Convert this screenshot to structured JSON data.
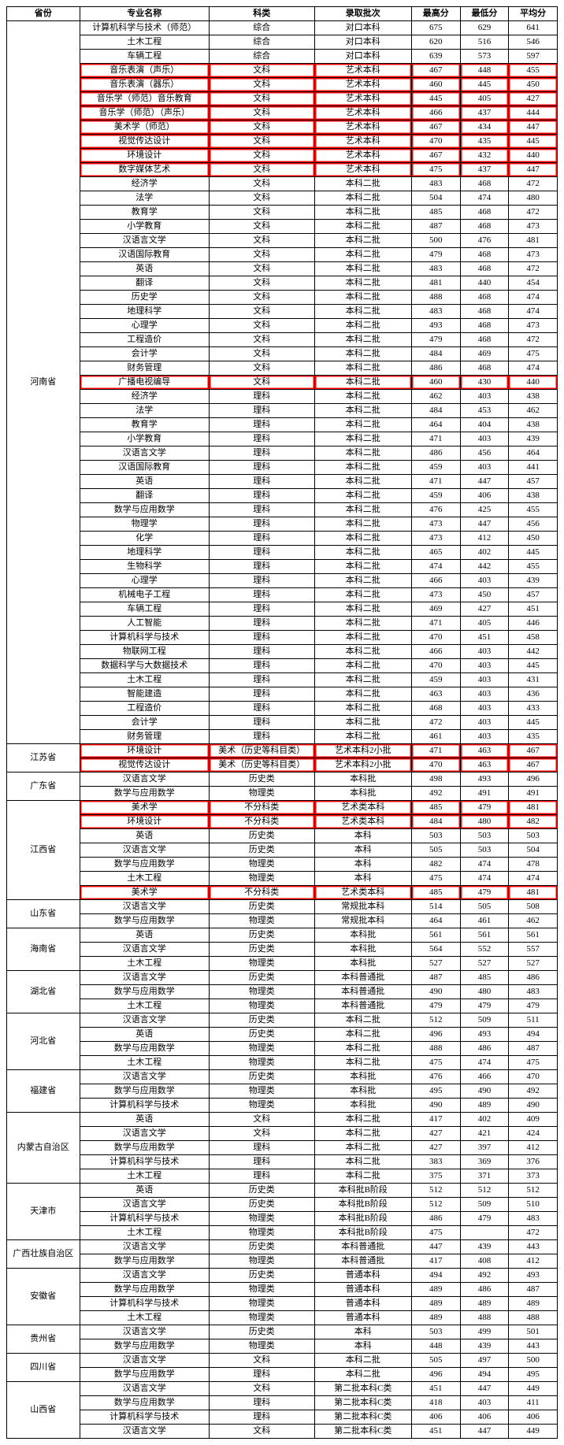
{
  "headers": [
    "省份",
    "专业名称",
    "科类",
    "录取批次",
    "最高分",
    "最低分",
    "平均分"
  ],
  "colors": {
    "highlight": "#ff0000",
    "border": "#000000",
    "text": "#000000",
    "bg": "#ffffff"
  },
  "font": {
    "family": "SimSun",
    "size_pt": 11
  },
  "provinces": [
    {
      "name": "河南省",
      "rows": [
        [
          "计算机科学与技术（师范）",
          "综合",
          "对口本科",
          "675",
          "629",
          "641",
          false
        ],
        [
          "土木工程",
          "综合",
          "对口本科",
          "620",
          "516",
          "546",
          false
        ],
        [
          "车辆工程",
          "综合",
          "对口本科",
          "639",
          "573",
          "597",
          false
        ],
        [
          "音乐表演（声乐）",
          "文科",
          "艺术本科",
          "467",
          "448",
          "455",
          true
        ],
        [
          "音乐表演（器乐）",
          "文科",
          "艺术本科",
          "460",
          "445",
          "450",
          true
        ],
        [
          "音乐学（师范）音乐教育",
          "文科",
          "艺术本科",
          "445",
          "405",
          "427",
          true
        ],
        [
          "音乐学（师范）（声乐）",
          "文科",
          "艺术本科",
          "466",
          "437",
          "444",
          true
        ],
        [
          "美术学（师范）",
          "文科",
          "艺术本科",
          "467",
          "434",
          "447",
          true
        ],
        [
          "视觉传达设计",
          "文科",
          "艺术本科",
          "470",
          "435",
          "445",
          true
        ],
        [
          "环境设计",
          "文科",
          "艺术本科",
          "467",
          "432",
          "440",
          true
        ],
        [
          "数字媒体艺术",
          "文科",
          "艺术本科",
          "475",
          "437",
          "447",
          true
        ],
        [
          "经济学",
          "文科",
          "本科二批",
          "483",
          "468",
          "472",
          false
        ],
        [
          "法学",
          "文科",
          "本科二批",
          "504",
          "474",
          "480",
          false
        ],
        [
          "教育学",
          "文科",
          "本科二批",
          "485",
          "468",
          "472",
          false
        ],
        [
          "小学教育",
          "文科",
          "本科二批",
          "487",
          "468",
          "473",
          false
        ],
        [
          "汉语言文学",
          "文科",
          "本科二批",
          "500",
          "476",
          "481",
          false
        ],
        [
          "汉语国际教育",
          "文科",
          "本科二批",
          "479",
          "468",
          "473",
          false
        ],
        [
          "英语",
          "文科",
          "本科二批",
          "483",
          "468",
          "472",
          false
        ],
        [
          "翻译",
          "文科",
          "本科二批",
          "481",
          "440",
          "454",
          false
        ],
        [
          "历史学",
          "文科",
          "本科二批",
          "488",
          "468",
          "474",
          false
        ],
        [
          "地理科学",
          "文科",
          "本科二批",
          "483",
          "468",
          "474",
          false
        ],
        [
          "心理学",
          "文科",
          "本科二批",
          "493",
          "468",
          "473",
          false
        ],
        [
          "工程造价",
          "文科",
          "本科二批",
          "479",
          "468",
          "472",
          false
        ],
        [
          "会计学",
          "文科",
          "本科二批",
          "484",
          "469",
          "475",
          false
        ],
        [
          "财务管理",
          "文科",
          "本科二批",
          "486",
          "468",
          "474",
          false
        ],
        [
          "广播电视编导",
          "文科",
          "本科二批",
          "460",
          "430",
          "440",
          true
        ],
        [
          "经济学",
          "理科",
          "本科二批",
          "462",
          "403",
          "438",
          false
        ],
        [
          "法学",
          "理科",
          "本科二批",
          "484",
          "453",
          "462",
          false
        ],
        [
          "教育学",
          "理科",
          "本科二批",
          "464",
          "404",
          "438",
          false
        ],
        [
          "小学教育",
          "理科",
          "本科二批",
          "471",
          "403",
          "439",
          false
        ],
        [
          "汉语言文学",
          "理科",
          "本科二批",
          "486",
          "456",
          "464",
          false
        ],
        [
          "汉语国际教育",
          "理科",
          "本科二批",
          "459",
          "403",
          "441",
          false
        ],
        [
          "英语",
          "理科",
          "本科二批",
          "471",
          "447",
          "457",
          false
        ],
        [
          "翻译",
          "理科",
          "本科二批",
          "459",
          "406",
          "438",
          false
        ],
        [
          "数学与应用数学",
          "理科",
          "本科二批",
          "476",
          "425",
          "455",
          false
        ],
        [
          "物理学",
          "理科",
          "本科二批",
          "473",
          "447",
          "456",
          false
        ],
        [
          "化学",
          "理科",
          "本科二批",
          "473",
          "412",
          "450",
          false
        ],
        [
          "地理科学",
          "理科",
          "本科二批",
          "465",
          "402",
          "445",
          false
        ],
        [
          "生物科学",
          "理科",
          "本科二批",
          "474",
          "442",
          "455",
          false
        ],
        [
          "心理学",
          "理科",
          "本科二批",
          "466",
          "403",
          "439",
          false
        ],
        [
          "机械电子工程",
          "理科",
          "本科二批",
          "473",
          "450",
          "457",
          false
        ],
        [
          "车辆工程",
          "理科",
          "本科二批",
          "469",
          "427",
          "451",
          false
        ],
        [
          "人工智能",
          "理科",
          "本科二批",
          "471",
          "405",
          "446",
          false
        ],
        [
          "计算机科学与技术",
          "理科",
          "本科二批",
          "470",
          "451",
          "458",
          false
        ],
        [
          "物联网工程",
          "理科",
          "本科二批",
          "466",
          "403",
          "442",
          false
        ],
        [
          "数据科学与大数据技术",
          "理科",
          "本科二批",
          "470",
          "403",
          "445",
          false
        ],
        [
          "土木工程",
          "理科",
          "本科二批",
          "459",
          "403",
          "431",
          false
        ],
        [
          "智能建造",
          "理科",
          "本科二批",
          "463",
          "403",
          "436",
          false
        ],
        [
          "工程造价",
          "理科",
          "本科二批",
          "468",
          "403",
          "433",
          false
        ],
        [
          "会计学",
          "理科",
          "本科二批",
          "472",
          "403",
          "445",
          false
        ],
        [
          "财务管理",
          "理科",
          "本科二批",
          "461",
          "403",
          "435",
          false
        ]
      ]
    },
    {
      "name": "江苏省",
      "rows": [
        [
          "环境设计",
          "美术（历史等科目类）",
          "艺术本科2小批",
          "471",
          "463",
          "467",
          true
        ],
        [
          "视觉传达设计",
          "美术（历史等科目类）",
          "艺术本科2小批",
          "470",
          "463",
          "467",
          true
        ]
      ]
    },
    {
      "name": "广东省",
      "rows": [
        [
          "汉语言文学",
          "历史类",
          "本科批",
          "498",
          "493",
          "496",
          false
        ],
        [
          "数学与应用数学",
          "物理类",
          "本科批",
          "492",
          "491",
          "491",
          false
        ]
      ]
    },
    {
      "name": "江西省",
      "rows": [
        [
          "美术学",
          "不分科类",
          "艺术类本科",
          "485",
          "479",
          "481",
          true
        ],
        [
          "环境设计",
          "不分科类",
          "艺术类本科",
          "484",
          "480",
          "482",
          true
        ],
        [
          "英语",
          "历史类",
          "本科",
          "503",
          "503",
          "503",
          false
        ],
        [
          "汉语言文学",
          "历史类",
          "本科",
          "505",
          "503",
          "504",
          false
        ],
        [
          "数学与应用数学",
          "物理类",
          "本科",
          "482",
          "474",
          "478",
          false
        ],
        [
          "土木工程",
          "物理类",
          "本科",
          "475",
          "474",
          "474",
          false
        ],
        [
          "美术学",
          "不分科类",
          "艺术类本科",
          "485",
          "479",
          "481",
          true
        ]
      ]
    },
    {
      "name": "山东省",
      "rows": [
        [
          "汉语言文学",
          "历史类",
          "常规批本科",
          "514",
          "505",
          "508",
          false
        ],
        [
          "数学与应用数学",
          "物理类",
          "常规批本科",
          "464",
          "461",
          "462",
          false
        ]
      ]
    },
    {
      "name": "海南省",
      "rows": [
        [
          "英语",
          "历史类",
          "本科批",
          "561",
          "561",
          "561",
          false
        ],
        [
          "汉语言文学",
          "历史类",
          "本科批",
          "564",
          "552",
          "557",
          false
        ],
        [
          "土木工程",
          "物理类",
          "本科批",
          "527",
          "527",
          "527",
          false
        ]
      ]
    },
    {
      "name": "湖北省",
      "rows": [
        [
          "汉语言文学",
          "历史类",
          "本科普通批",
          "487",
          "485",
          "486",
          false
        ],
        [
          "数学与应用数学",
          "物理类",
          "本科普通批",
          "490",
          "480",
          "483",
          false
        ],
        [
          "土木工程",
          "物理类",
          "本科普通批",
          "479",
          "479",
          "479",
          false
        ]
      ]
    },
    {
      "name": "河北省",
      "rows": [
        [
          "汉语言文学",
          "历史类",
          "本科二批",
          "512",
          "509",
          "511",
          false
        ],
        [
          "英语",
          "历史类",
          "本科二批",
          "496",
          "493",
          "494",
          false
        ],
        [
          "数学与应用数学",
          "物理类",
          "本科二批",
          "488",
          "486",
          "487",
          false
        ],
        [
          "土木工程",
          "物理类",
          "本科二批",
          "475",
          "474",
          "475",
          false
        ]
      ]
    },
    {
      "name": "福建省",
      "rows": [
        [
          "汉语言文学",
          "历史类",
          "本科批",
          "476",
          "466",
          "470",
          false
        ],
        [
          "数学与应用数学",
          "物理类",
          "本科批",
          "495",
          "490",
          "492",
          false
        ],
        [
          "计算机科学与技术",
          "物理类",
          "本科批",
          "490",
          "489",
          "490",
          false
        ]
      ]
    },
    {
      "name": "内蒙古自治区",
      "rows": [
        [
          "英语",
          "文科",
          "本科二批",
          "417",
          "402",
          "409",
          false
        ],
        [
          "汉语言文学",
          "文科",
          "本科二批",
          "427",
          "421",
          "424",
          false
        ],
        [
          "数学与应用数学",
          "理科",
          "本科二批",
          "427",
          "397",
          "412",
          false
        ],
        [
          "计算机科学与技术",
          "理科",
          "本科二批",
          "383",
          "369",
          "376",
          false
        ],
        [
          "土木工程",
          "理科",
          "本科二批",
          "375",
          "371",
          "373",
          false
        ]
      ]
    },
    {
      "name": "天津市",
      "rows": [
        [
          "英语",
          "历史类",
          "本科批B阶段",
          "512",
          "512",
          "512",
          false
        ],
        [
          "汉语言文学",
          "历史类",
          "本科批B阶段",
          "512",
          "509",
          "510",
          false
        ],
        [
          "计算机科学与技术",
          "物理类",
          "本科批B阶段",
          "486",
          "479",
          "483",
          false
        ],
        [
          "土木工程",
          "物理类",
          "本科批B阶段",
          "475",
          "",
          "472",
          false
        ]
      ]
    },
    {
      "name": "广西壮族自治区",
      "rows": [
        [
          "汉语言文学",
          "历史类",
          "本科普通批",
          "447",
          "439",
          "443",
          false
        ],
        [
          "数学与应用数学",
          "物理类",
          "本科普通批",
          "417",
          "408",
          "412",
          false
        ]
      ]
    },
    {
      "name": "安徽省",
      "rows": [
        [
          "汉语言文学",
          "历史类",
          "普通本科",
          "494",
          "492",
          "493",
          false
        ],
        [
          "数学与应用数学",
          "物理类",
          "普通本科",
          "489",
          "486",
          "487",
          false
        ],
        [
          "计算机科学与技术",
          "物理类",
          "普通本科",
          "489",
          "489",
          "489",
          false
        ],
        [
          "土木工程",
          "物理类",
          "普通本科",
          "489",
          "488",
          "488",
          false
        ]
      ]
    },
    {
      "name": "贵州省",
      "rows": [
        [
          "汉语言文学",
          "历史类",
          "本科",
          "503",
          "499",
          "501",
          false
        ],
        [
          "数学与应用数学",
          "物理类",
          "本科",
          "448",
          "439",
          "443",
          false
        ]
      ]
    },
    {
      "name": "四川省",
      "rows": [
        [
          "汉语言文学",
          "文科",
          "本科二批",
          "505",
          "497",
          "500",
          false
        ],
        [
          "数学与应用数学",
          "理科",
          "本科二批",
          "496",
          "494",
          "495",
          false
        ]
      ]
    },
    {
      "name": "山西省",
      "rows": [
        [
          "汉语言文学",
          "文科",
          "第二批本科C类",
          "451",
          "447",
          "449",
          false
        ],
        [
          "数学与应用数学",
          "理科",
          "第二批本科C类",
          "418",
          "403",
          "411",
          false
        ],
        [
          "计算机科学与技术",
          "理科",
          "第二批本科C类",
          "406",
          "406",
          "406",
          false
        ],
        [
          "汉语言文学",
          "文科",
          "第二批本科C类",
          "451",
          "447",
          "449",
          false
        ]
      ]
    }
  ]
}
